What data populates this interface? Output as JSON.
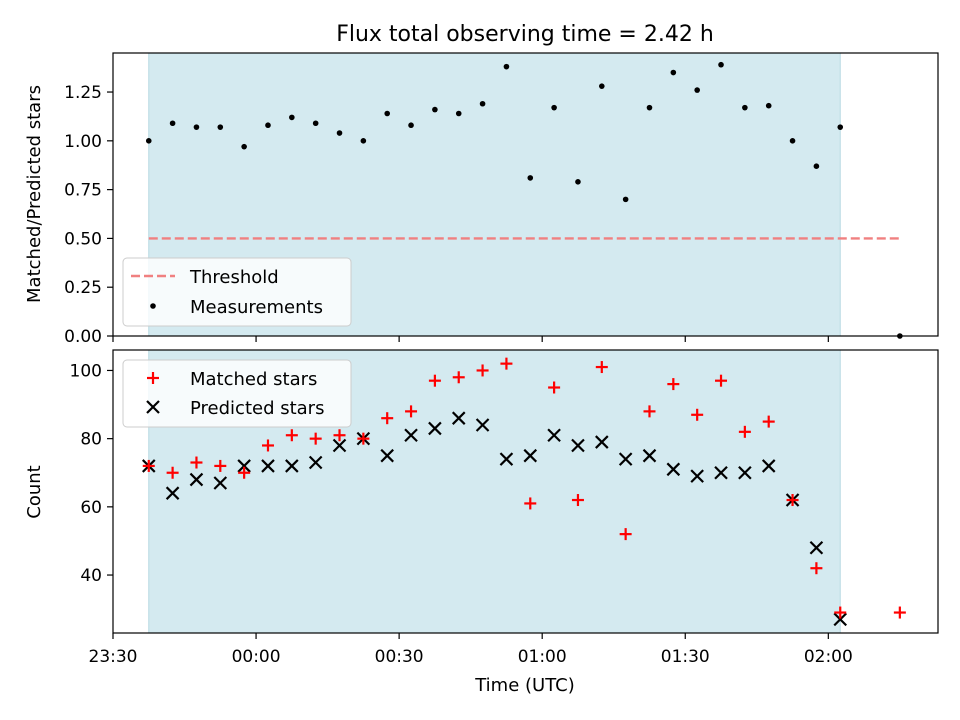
{
  "chart_data": [
    {
      "type": "scatter",
      "title": "Flux total observing time = 2.42 h",
      "xlabel": "",
      "ylabel": "Matched/Predicted stars",
      "ylim": [
        0,
        1.45
      ],
      "yticks": [
        "0.00",
        "0.25",
        "0.50",
        "0.75",
        "1.00",
        "1.25"
      ],
      "xlim_minutes": [
        -30,
        143
      ],
      "observing_window_minutes": [
        -22.5,
        122.5
      ],
      "legend": {
        "placement": "lower-left",
        "entries": [
          "Threshold",
          "Measurements"
        ]
      },
      "threshold": {
        "name": "Threshold",
        "value": 0.5,
        "x_minutes": [
          -22.5,
          135
        ],
        "color": "#f08080"
      },
      "measurements": {
        "name": "Measurements",
        "color": "#000000",
        "x_minutes": [
          -22.5,
          -17.5,
          -12.5,
          -7.5,
          -2.5,
          2.5,
          7.5,
          12.5,
          17.5,
          22.5,
          27.5,
          32.5,
          37.5,
          42.5,
          47.5,
          52.5,
          57.5,
          62.5,
          67.5,
          72.5,
          77.5,
          82.5,
          87.5,
          92.5,
          97.5,
          102.5,
          107.5,
          112.5,
          117.5,
          122.5,
          135
        ],
        "values": [
          1.0,
          1.09,
          1.07,
          1.07,
          0.97,
          1.08,
          1.12,
          1.09,
          1.04,
          1.0,
          1.14,
          1.08,
          1.16,
          1.14,
          1.19,
          1.38,
          0.81,
          1.17,
          0.79,
          1.28,
          0.7,
          1.17,
          1.35,
          1.26,
          1.39,
          1.17,
          1.18,
          1.0,
          0.87,
          1.07,
          0.0
        ]
      }
    },
    {
      "type": "scatter",
      "title": "",
      "xlabel": "Time (UTC)",
      "ylabel": "Count",
      "ylim": [
        23,
        106
      ],
      "yticks": [
        "40",
        "60",
        "80",
        "100"
      ],
      "xticks": [
        "23:30",
        "00:00",
        "00:30",
        "01:00",
        "01:30",
        "02:00"
      ],
      "xlim_minutes": [
        -30,
        143
      ],
      "observing_window_minutes": [
        -22.5,
        122.5
      ],
      "legend": {
        "placement": "upper-left",
        "entries": [
          "Matched stars",
          "Predicted stars"
        ]
      },
      "x_minutes": [
        -22.5,
        -17.5,
        -12.5,
        -7.5,
        -2.5,
        2.5,
        7.5,
        12.5,
        17.5,
        22.5,
        27.5,
        32.5,
        37.5,
        42.5,
        47.5,
        52.5,
        57.5,
        62.5,
        67.5,
        72.5,
        77.5,
        82.5,
        87.5,
        92.5,
        97.5,
        102.5,
        107.5,
        112.5,
        117.5,
        122.5
      ],
      "series": [
        {
          "name": "Matched stars",
          "marker": "plus",
          "color": "#ff0000",
          "values": [
            72,
            70,
            73,
            72,
            70,
            78,
            81,
            80,
            81,
            80,
            86,
            88,
            97,
            98,
            100,
            102,
            61,
            95,
            62,
            101,
            52,
            88,
            96,
            87,
            97,
            82,
            85,
            62,
            42,
            29
          ],
          "extra_point": {
            "x_minutes": 135,
            "value": 29
          }
        },
        {
          "name": "Predicted stars",
          "marker": "x",
          "color": "#000000",
          "values": [
            72,
            64,
            68,
            67,
            72,
            72,
            72,
            73,
            78,
            80,
            75,
            81,
            83,
            86,
            84,
            74,
            75,
            81,
            78,
            79,
            74,
            75,
            71,
            69,
            70,
            70,
            72,
            62,
            48,
            27
          ]
        }
      ]
    }
  ],
  "colors": {
    "window_fill": "#d4eaf0",
    "window_edge": "#b7d9e3",
    "threshold": "#f08080",
    "matched": "#ff0000",
    "predicted": "#000000"
  }
}
